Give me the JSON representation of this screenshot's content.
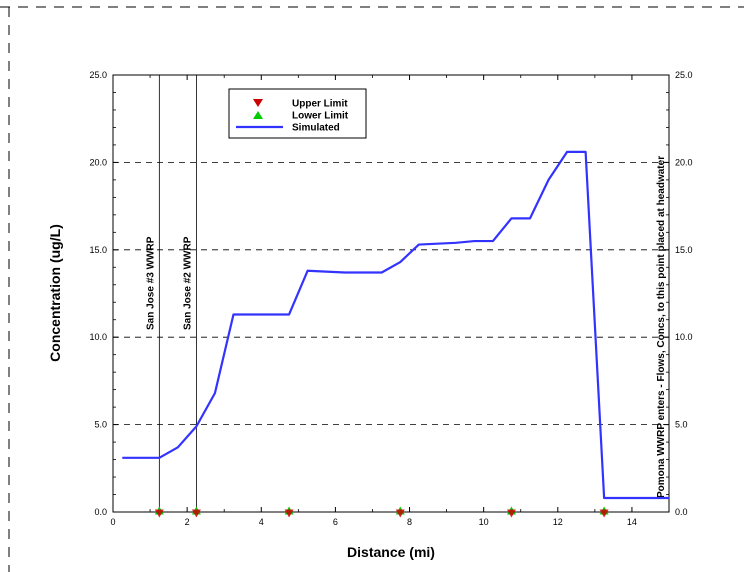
{
  "chart_data": {
    "type": "line",
    "xlabel": "Distance (mi)",
    "ylabel": "Concentration (ug/L)",
    "xlim": [
      0,
      15
    ],
    "ylim": [
      0,
      25
    ],
    "x_ticks": [
      {
        "value": 2,
        "label": "2"
      },
      {
        "value": 4,
        "label": "4"
      },
      {
        "value": 6,
        "label": "6"
      },
      {
        "value": 8,
        "label": "8"
      },
      {
        "value": 10,
        "label": "10"
      },
      {
        "value": 12,
        "label": "12"
      },
      {
        "value": 14,
        "label": "14"
      }
    ],
    "x_origin_label": "0",
    "y_ticks": [
      {
        "value": 0,
        "label": "0.0"
      },
      {
        "value": 5,
        "label": "5.0"
      },
      {
        "value": 10,
        "label": "10.0"
      },
      {
        "value": 15,
        "label": "15.0"
      },
      {
        "value": 20,
        "label": "20.0"
      },
      {
        "value": 25,
        "label": "25.0"
      }
    ],
    "grid": "horizontal dashed",
    "legend": {
      "placement": "top-left",
      "entries": [
        {
          "label": "Upper Limit",
          "marker": "triangle-down",
          "color": "#cc0000"
        },
        {
          "label": "Lower Limit",
          "marker": "triangle-up",
          "color": "#00cc00"
        },
        {
          "label": "Simulated",
          "marker": "line",
          "color": "#3333ff"
        }
      ]
    },
    "series": [
      {
        "name": "Simulated",
        "color": "#3333ff",
        "x": [
          0.25,
          1.25,
          1.75,
          2.25,
          2.75,
          3.25,
          4.75,
          5.25,
          6.25,
          7.25,
          7.75,
          8.25,
          9.25,
          9.75,
          10.25,
          10.75,
          11.25,
          11.75,
          12.25,
          12.75,
          13.25,
          14.75,
          15.0
        ],
        "y": [
          3.1,
          3.1,
          3.7,
          4.9,
          6.8,
          11.3,
          11.3,
          13.8,
          13.7,
          13.7,
          14.3,
          15.3,
          15.4,
          15.5,
          15.5,
          16.8,
          16.8,
          19.0,
          20.6,
          20.6,
          0.8,
          0.8,
          0.8
        ]
      },
      {
        "name": "Lower Limit",
        "color": "#00cc00",
        "marker": "triangle-up",
        "x": [
          1.25,
          2.25,
          4.75,
          7.75,
          10.75,
          13.25
        ],
        "y": [
          0,
          0,
          0,
          0,
          0,
          0
        ]
      },
      {
        "name": "Upper Limit",
        "color": "#cc0000",
        "marker": "triangle-down",
        "x": [
          1.25,
          2.25,
          4.75,
          7.75,
          10.75,
          13.25
        ],
        "y": [
          0,
          0,
          0,
          0,
          0,
          0
        ]
      }
    ],
    "annotations": [
      {
        "x": 1.25,
        "text": "San Jose #3 WWRP",
        "line": true
      },
      {
        "x": 2.25,
        "text": "San Jose #2 WWRP",
        "line": true
      },
      {
        "x": 15.0,
        "text": "Pomona WWRP enters - Flows, Concs, to this point placed at headwater",
        "line": false
      }
    ]
  }
}
